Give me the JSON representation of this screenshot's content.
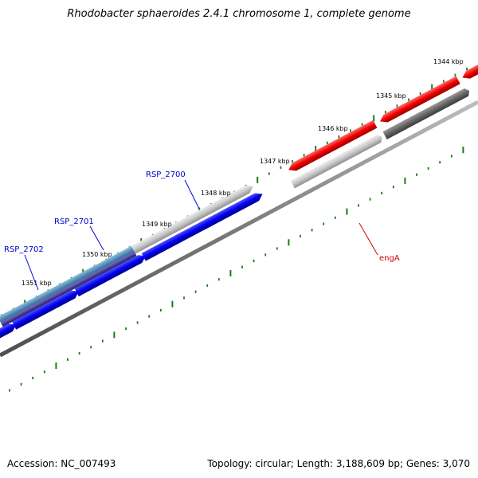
{
  "title": "Rhodobacter sphaeroides 2.4.1 chromosome 1, complete genome",
  "footer": {
    "accession": "Accession: NC_007493",
    "summary": "Topology: circular; Length: 3,188,609 bp; Genes: 3,070"
  },
  "ruler": {
    "labels": [
      "1344 kbp",
      "1345 kbp",
      "1346 kbp",
      "1347 kbp",
      "1348 kbp",
      "1349 kbp",
      "1350 kbp",
      "1351 kbp"
    ]
  },
  "genes": [
    {
      "label": "RSP_2700",
      "color": "#0000cc"
    },
    {
      "label": "RSP_2701",
      "color": "#0000cc"
    },
    {
      "label": "RSP_2702",
      "color": "#0000cc"
    },
    {
      "label": "engA",
      "color": "#cc0000"
    }
  ],
  "colors": {
    "forward_cds": "#0000ee",
    "reverse_cds": "#ee0000",
    "tick": "#1a7a1a",
    "backbone": "#888888",
    "highlight": "#5b8fb8"
  }
}
